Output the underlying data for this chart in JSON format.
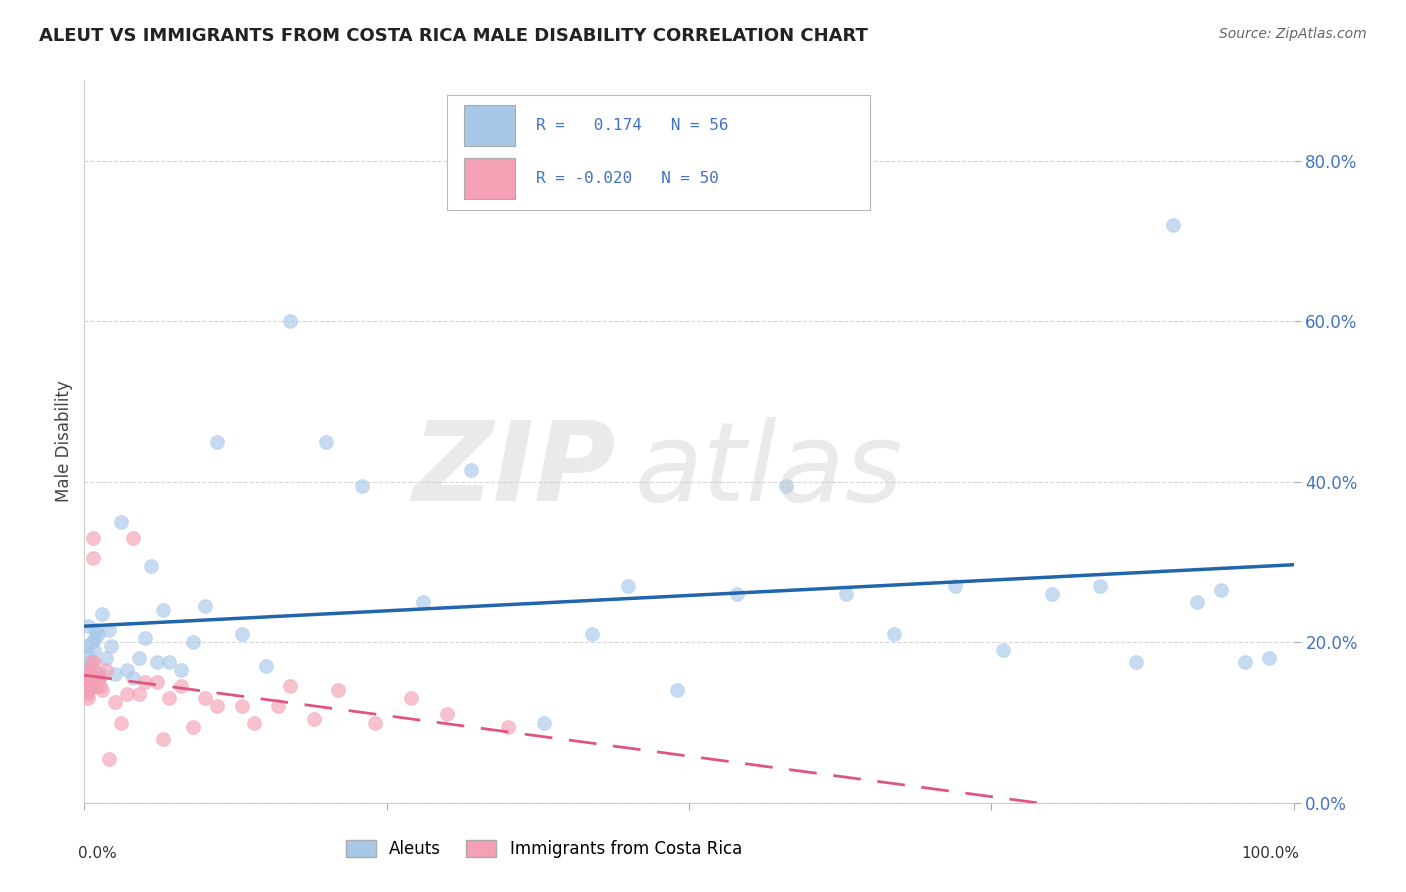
{
  "title": "ALEUT VS IMMIGRANTS FROM COSTA RICA MALE DISABILITY CORRELATION CHART",
  "source": "Source: ZipAtlas.com",
  "ylabel": "Male Disability",
  "legend_entry1": "Aleuts",
  "legend_entry2": "Immigrants from Costa Rica",
  "r1": 0.174,
  "n1": 56,
  "r2": -0.02,
  "n2": 50,
  "aleuts_x": [
    0.001,
    0.002,
    0.003,
    0.004,
    0.005,
    0.006,
    0.007,
    0.008,
    0.009,
    0.01,
    0.011,
    0.012,
    0.013,
    0.015,
    0.018,
    0.02,
    0.022,
    0.025,
    0.03,
    0.035,
    0.04,
    0.045,
    0.05,
    0.055,
    0.06,
    0.065,
    0.07,
    0.08,
    0.09,
    0.1,
    0.11,
    0.13,
    0.15,
    0.17,
    0.2,
    0.23,
    0.28,
    0.32,
    0.38,
    0.42,
    0.45,
    0.49,
    0.54,
    0.58,
    0.63,
    0.67,
    0.72,
    0.76,
    0.8,
    0.84,
    0.87,
    0.9,
    0.92,
    0.94,
    0.96,
    0.98
  ],
  "aleuts_y": [
    0.195,
    0.185,
    0.22,
    0.165,
    0.175,
    0.2,
    0.145,
    0.19,
    0.205,
    0.215,
    0.21,
    0.155,
    0.16,
    0.235,
    0.18,
    0.215,
    0.195,
    0.16,
    0.35,
    0.165,
    0.155,
    0.18,
    0.205,
    0.295,
    0.175,
    0.24,
    0.175,
    0.165,
    0.2,
    0.245,
    0.45,
    0.21,
    0.17,
    0.6,
    0.45,
    0.395,
    0.25,
    0.415,
    0.1,
    0.21,
    0.27,
    0.14,
    0.26,
    0.395,
    0.26,
    0.21,
    0.27,
    0.19,
    0.26,
    0.27,
    0.175,
    0.72,
    0.25,
    0.265,
    0.175,
    0.18
  ],
  "costa_rica_x": [
    0.001,
    0.001,
    0.001,
    0.002,
    0.002,
    0.002,
    0.003,
    0.003,
    0.003,
    0.004,
    0.004,
    0.004,
    0.005,
    0.005,
    0.006,
    0.006,
    0.007,
    0.007,
    0.008,
    0.009,
    0.01,
    0.011,
    0.012,
    0.013,
    0.015,
    0.018,
    0.02,
    0.025,
    0.03,
    0.035,
    0.04,
    0.045,
    0.05,
    0.06,
    0.065,
    0.07,
    0.08,
    0.09,
    0.1,
    0.11,
    0.13,
    0.14,
    0.16,
    0.17,
    0.19,
    0.21,
    0.24,
    0.27,
    0.3,
    0.35
  ],
  "costa_rica_y": [
    0.155,
    0.145,
    0.14,
    0.16,
    0.15,
    0.135,
    0.145,
    0.155,
    0.13,
    0.165,
    0.14,
    0.15,
    0.145,
    0.16,
    0.175,
    0.155,
    0.33,
    0.305,
    0.175,
    0.145,
    0.145,
    0.16,
    0.155,
    0.145,
    0.14,
    0.165,
    0.055,
    0.125,
    0.1,
    0.135,
    0.33,
    0.135,
    0.15,
    0.15,
    0.08,
    0.13,
    0.145,
    0.095,
    0.13,
    0.12,
    0.12,
    0.1,
    0.12,
    0.145,
    0.105,
    0.14,
    0.1,
    0.13,
    0.11,
    0.095
  ],
  "blue_color": "#A8C8E8",
  "pink_color": "#F4A0B5",
  "blue_line_color": "#2166AC",
  "pink_line_color": "#E05580",
  "background_color": "#FFFFFF",
  "grid_color": "#CCCCCC",
  "xlim": [
    0.0,
    1.0
  ],
  "ylim": [
    0.0,
    0.9
  ],
  "yticks": [
    0.0,
    0.2,
    0.4,
    0.6,
    0.8
  ]
}
